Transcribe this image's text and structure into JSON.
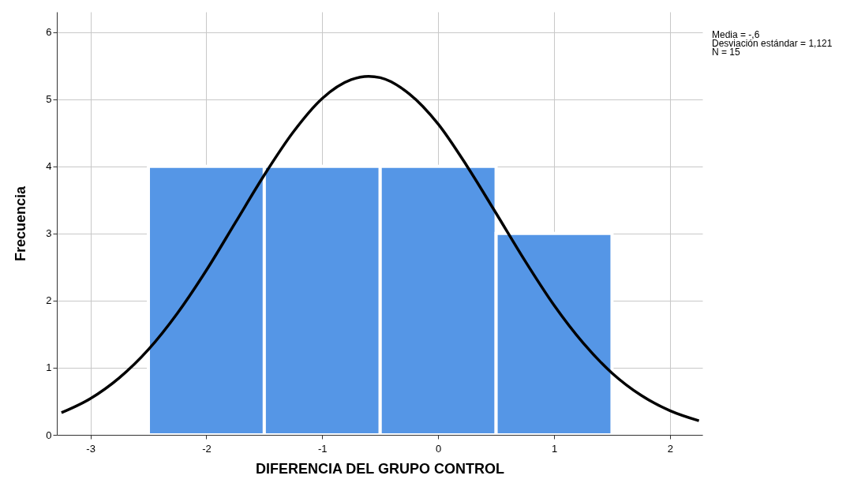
{
  "chart_data": {
    "type": "histogram",
    "xlabel": "DIFERENCIA DEL GRUPO CONTROL",
    "ylabel": "Frecuencia",
    "bins": [
      -2.5,
      -1.5,
      -0.5,
      0.5,
      1.5
    ],
    "values": [
      4,
      4,
      4,
      3
    ],
    "color": "#5596e6",
    "series": [
      {
        "type": "line",
        "color": "#000000",
        "x": [
          -3.25,
          -3,
          -2.75,
          -2.5,
          -2.25,
          -2,
          -1.75,
          -1.5,
          -1.25,
          -1,
          -0.75,
          -0.6,
          -0.5,
          -0.25,
          0,
          0.25,
          0.5,
          0.75,
          1,
          1.25,
          1.5,
          1.75,
          2,
          2.25
        ],
        "values": [
          0.33,
          0.54,
          0.85,
          1.27,
          1.81,
          2.45,
          3.16,
          3.87,
          4.51,
          5.01,
          5.29,
          5.34,
          5.32,
          5.08,
          4.63,
          4.0,
          3.3,
          2.59,
          1.93,
          1.37,
          0.92,
          0.59,
          0.36,
          0.21
        ]
      }
    ],
    "annotations": [
      "Media = -,6",
      "Desviación estándar = 1,121",
      "N = 15"
    ],
    "xlim": [
      -3.29,
      2.28
    ],
    "ylim": [
      0,
      6.3
    ],
    "xticks": [
      -3,
      -2,
      -1,
      0,
      1,
      2
    ],
    "yticks": [
      0,
      1,
      2,
      3,
      4,
      5,
      6
    ],
    "grid": true
  }
}
